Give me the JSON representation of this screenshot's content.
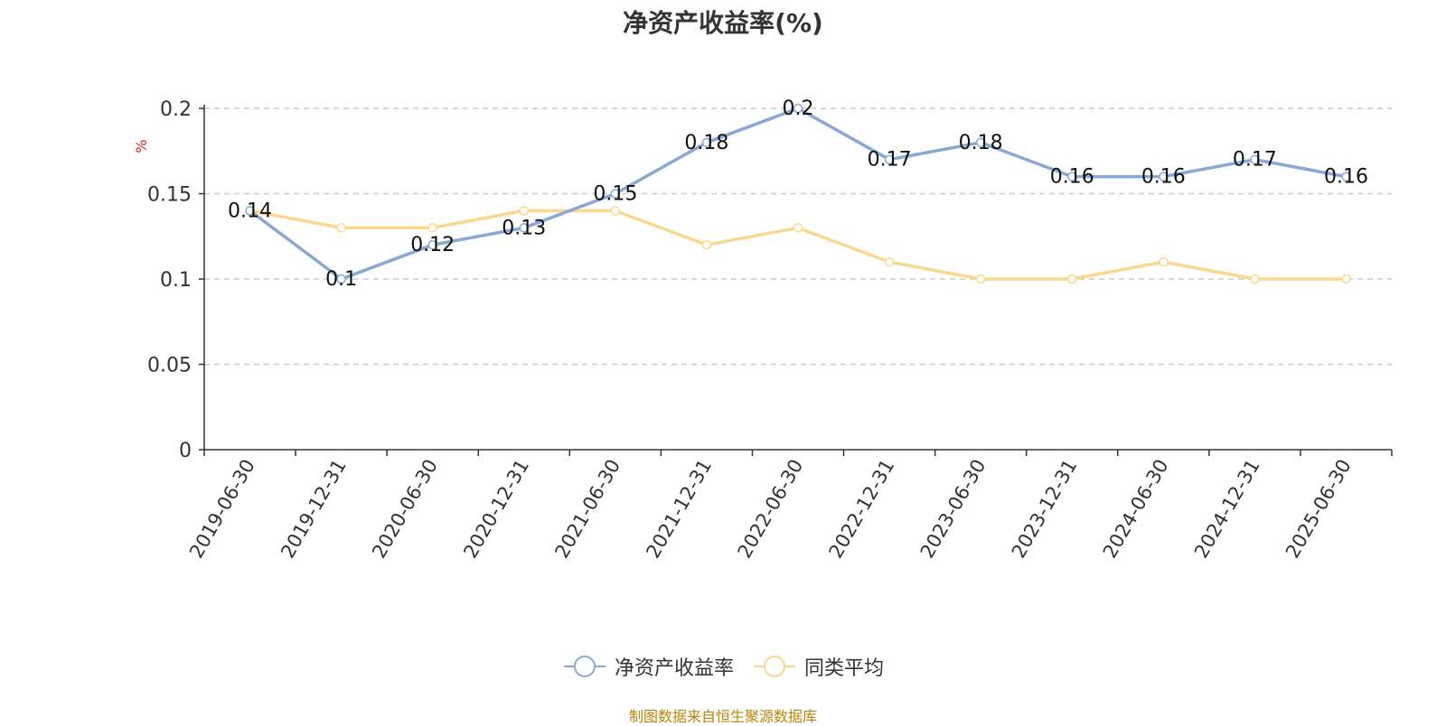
{
  "chart_data": {
    "type": "line",
    "title": "净资产收益率(%)",
    "ylabel": "%",
    "xlabel": "",
    "ylim": [
      0,
      0.2
    ],
    "yticks": [
      "0",
      "0.05",
      "0.1",
      "0.15",
      "0.2"
    ],
    "grid": true,
    "legend_position": "bottom",
    "categories": [
      "2019-06-30",
      "2019-12-31",
      "2020-06-30",
      "2020-12-31",
      "2021-06-30",
      "2021-12-31",
      "2022-06-30",
      "2022-12-31",
      "2023-06-30",
      "2023-12-31",
      "2024-06-30",
      "2024-12-31",
      "2025-06-30"
    ],
    "series": [
      {
        "name": "净资产收益率",
        "color": "#8aa8d6",
        "values": [
          0.14,
          0.1,
          0.12,
          0.13,
          0.15,
          0.18,
          0.2,
          0.17,
          0.18,
          0.16,
          0.16,
          0.17,
          0.16
        ],
        "labels": [
          "0.14",
          "0.1",
          "0.12",
          "0.13",
          "0.15",
          "0.18",
          "0.2",
          "0.17",
          "0.18",
          "0.16",
          "0.16",
          "0.17",
          "0.16"
        ],
        "show_labels": true
      },
      {
        "name": "同类平均",
        "color": "#fad88e",
        "values": [
          0.14,
          0.13,
          0.13,
          0.14,
          0.14,
          0.12,
          0.13,
          0.11,
          0.1,
          0.1,
          0.11,
          0.1,
          0.1
        ],
        "show_labels": false
      }
    ]
  },
  "footer": "制图数据来自恒生聚源数据库"
}
